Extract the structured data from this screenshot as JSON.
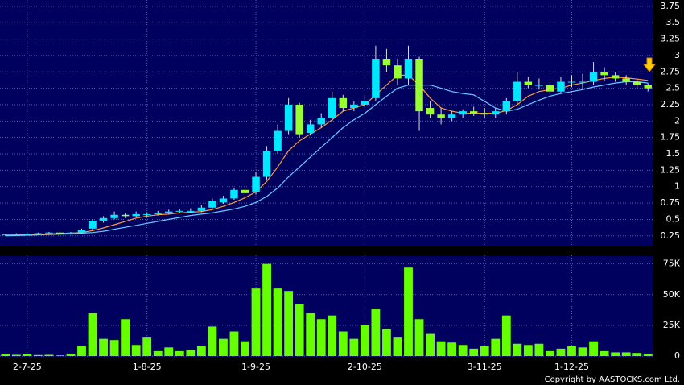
{
  "chart_data": [
    {
      "type": "candlestick",
      "open": [
        0.26,
        0.27,
        0.27,
        0.28,
        0.29,
        0.3,
        0.28,
        0.3,
        0.36,
        0.48,
        0.52,
        0.57,
        0.55,
        0.58,
        0.58,
        0.6,
        0.62,
        0.63,
        0.63,
        0.68,
        0.76,
        0.82,
        0.95,
        0.92,
        1.15,
        1.55,
        1.85,
        2.25,
        1.82,
        1.95,
        2.05,
        2.35,
        2.2,
        2.25,
        2.35,
        2.95,
        2.85,
        2.65,
        2.95,
        2.2,
        2.1,
        2.05,
        2.1,
        2.15,
        2.12,
        2.1,
        2.15,
        2.3,
        2.6,
        2.55,
        2.55,
        2.45,
        2.6,
        2.6,
        2.6,
        2.75,
        2.7,
        2.65,
        2.6,
        2.55
      ],
      "high": [
        0.28,
        0.29,
        0.29,
        0.3,
        0.31,
        0.31,
        0.31,
        0.36,
        0.5,
        0.55,
        0.62,
        0.6,
        0.62,
        0.61,
        0.63,
        0.65,
        0.66,
        0.67,
        0.72,
        0.82,
        0.86,
        0.98,
        0.98,
        1.22,
        1.62,
        1.95,
        2.35,
        2.28,
        2.02,
        2.12,
        2.45,
        2.4,
        2.3,
        2.4,
        3.15,
        3.1,
        2.95,
        3.15,
        2.98,
        2.3,
        2.2,
        2.15,
        2.18,
        2.22,
        2.2,
        2.2,
        2.35,
        2.75,
        2.68,
        2.65,
        2.62,
        2.68,
        2.7,
        2.72,
        2.9,
        2.82,
        2.75,
        2.7,
        2.65,
        2.58
      ],
      "low": [
        0.25,
        0.26,
        0.26,
        0.27,
        0.28,
        0.27,
        0.27,
        0.29,
        0.34,
        0.45,
        0.5,
        0.52,
        0.53,
        0.55,
        0.56,
        0.58,
        0.6,
        0.6,
        0.61,
        0.66,
        0.74,
        0.8,
        0.86,
        0.88,
        1.1,
        1.5,
        1.8,
        1.75,
        1.78,
        1.9,
        2.0,
        2.15,
        2.15,
        2.2,
        2.3,
        2.75,
        2.55,
        2.55,
        1.85,
        2.05,
        1.95,
        2.0,
        2.05,
        2.08,
        2.05,
        2.05,
        2.1,
        2.25,
        2.5,
        2.48,
        2.4,
        2.42,
        2.52,
        2.5,
        2.55,
        2.62,
        2.6,
        2.55,
        2.5,
        2.45
      ],
      "close": [
        0.27,
        0.27,
        0.28,
        0.29,
        0.3,
        0.28,
        0.3,
        0.34,
        0.48,
        0.52,
        0.57,
        0.55,
        0.58,
        0.58,
        0.6,
        0.62,
        0.63,
        0.63,
        0.68,
        0.78,
        0.82,
        0.95,
        0.9,
        1.15,
        1.55,
        1.85,
        2.25,
        1.8,
        1.95,
        2.05,
        2.35,
        2.2,
        2.25,
        2.3,
        2.95,
        2.85,
        2.65,
        2.95,
        2.15,
        2.1,
        2.05,
        2.1,
        2.15,
        2.12,
        2.1,
        2.15,
        2.3,
        2.6,
        2.55,
        2.55,
        2.45,
        2.6,
        2.6,
        2.6,
        2.75,
        2.7,
        2.65,
        2.6,
        2.55,
        2.5
      ],
      "up_color": "#00e8ff",
      "down_color": "#99ff33",
      "lines": [
        {
          "color": "#ff9933",
          "values": [
            0.26,
            0.265,
            0.27,
            0.275,
            0.28,
            0.285,
            0.29,
            0.3,
            0.33,
            0.37,
            0.42,
            0.47,
            0.52,
            0.55,
            0.57,
            0.58,
            0.6,
            0.61,
            0.62,
            0.65,
            0.7,
            0.76,
            0.83,
            0.92,
            1.08,
            1.3,
            1.55,
            1.7,
            1.8,
            1.9,
            2.02,
            2.15,
            2.2,
            2.25,
            2.4,
            2.55,
            2.7,
            2.7,
            2.55,
            2.35,
            2.2,
            2.15,
            2.12,
            2.12,
            2.12,
            2.12,
            2.16,
            2.25,
            2.38,
            2.45,
            2.48,
            2.5,
            2.55,
            2.58,
            2.62,
            2.65,
            2.67,
            2.66,
            2.64,
            2.62
          ]
        },
        {
          "color": "#66ccff",
          "values": [
            0.25,
            0.255,
            0.26,
            0.265,
            0.27,
            0.275,
            0.28,
            0.29,
            0.3,
            0.32,
            0.35,
            0.38,
            0.41,
            0.44,
            0.47,
            0.5,
            0.53,
            0.56,
            0.58,
            0.6,
            0.63,
            0.66,
            0.7,
            0.76,
            0.85,
            0.98,
            1.15,
            1.3,
            1.45,
            1.6,
            1.75,
            1.9,
            2.02,
            2.12,
            2.25,
            2.38,
            2.5,
            2.55,
            2.55,
            2.55,
            2.5,
            2.45,
            2.42,
            2.4,
            2.3,
            2.2,
            2.15,
            2.18,
            2.25,
            2.32,
            2.38,
            2.42,
            2.45,
            2.48,
            2.52,
            2.55,
            2.58,
            2.6,
            2.6,
            2.58
          ]
        }
      ],
      "ylim": [
        0.1,
        3.81
      ],
      "yticks": [
        0.25,
        0.5,
        0.75,
        1,
        1.25,
        1.5,
        1.75,
        2,
        2.25,
        2.5,
        2.75,
        3,
        3.25,
        3.5,
        3.75
      ],
      "grid": true
    },
    {
      "type": "bar",
      "categories": [
        null,
        null,
        "2-7-25",
        null,
        null,
        null,
        null,
        null,
        null,
        null,
        null,
        null,
        null,
        "1-8-25",
        null,
        null,
        null,
        null,
        null,
        null,
        null,
        null,
        null,
        "1-9-25",
        null,
        null,
        null,
        null,
        null,
        null,
        null,
        null,
        null,
        "2-10-25",
        null,
        null,
        null,
        null,
        null,
        null,
        null,
        null,
        null,
        null,
        "3-11-25",
        null,
        null,
        null,
        null,
        null,
        null,
        null,
        "1-12-25",
        null,
        null,
        null,
        null,
        null,
        null,
        null
      ],
      "values": [
        1500,
        1000,
        2000,
        800,
        1000,
        500,
        2000,
        8000,
        35000,
        14000,
        13000,
        30000,
        9000,
        15000,
        4000,
        7000,
        4000,
        5000,
        8000,
        24000,
        14000,
        20000,
        12000,
        55000,
        75000,
        55000,
        53000,
        42000,
        35000,
        30000,
        33000,
        20000,
        14000,
        25000,
        38000,
        22000,
        15000,
        72000,
        30000,
        18000,
        12000,
        11000,
        9000,
        6000,
        8000,
        14000,
        33000,
        10000,
        9000,
        10000,
        4000,
        6000,
        8000,
        7000,
        12000,
        4000,
        3000,
        3000,
        2500,
        2000
      ],
      "color": "#66ff00",
      "ylim": [
        0,
        80000
      ],
      "yticks": [
        0,
        {
          "value": 25000,
          "label": "25K"
        },
        {
          "value": 50000,
          "label": "50K"
        },
        {
          "value": 75000,
          "label": "75K"
        }
      ],
      "grid": true
    }
  ],
  "copyright": "Copyright by AASTOCKS.com Ltd."
}
